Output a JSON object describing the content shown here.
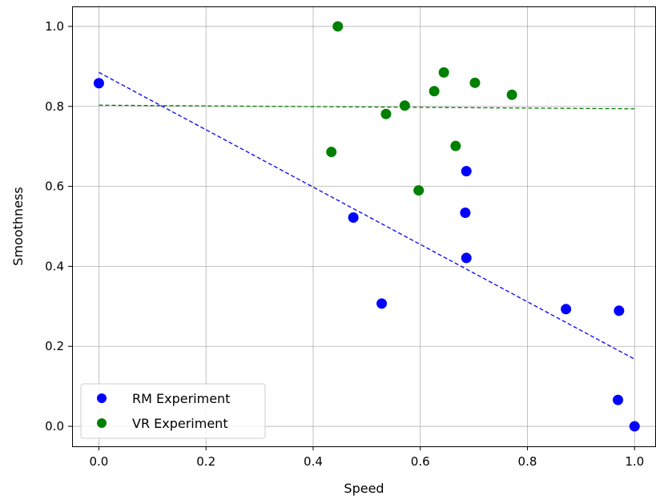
{
  "chart_data": {
    "type": "scatter",
    "xlabel": "Speed",
    "ylabel": "Smoothness",
    "xlim": [
      -0.05,
      1.04
    ],
    "ylim": [
      -0.05,
      1.05
    ],
    "xticks": [
      "0.0",
      "0.2",
      "0.4",
      "0.6",
      "0.8",
      "1.0"
    ],
    "yticks": [
      "0.0",
      "0.2",
      "0.4",
      "0.6",
      "0.8",
      "1.0"
    ],
    "grid": true,
    "legend_position": "lower-left",
    "series": [
      {
        "name": "RM Experiment",
        "color": "#0000ff",
        "points": [
          [
            0.0,
            0.858
          ],
          [
            0.475,
            0.522
          ],
          [
            0.528,
            0.307
          ],
          [
            0.686,
            0.638
          ],
          [
            0.684,
            0.534
          ],
          [
            0.686,
            0.421
          ],
          [
            0.872,
            0.293
          ],
          [
            0.971,
            0.289
          ],
          [
            0.969,
            0.066
          ],
          [
            1.0,
            0.0
          ]
        ],
        "trend": {
          "x": [
            0.0,
            1.0
          ],
          "y": [
            0.885,
            0.168
          ]
        }
      },
      {
        "name": "VR Experiment",
        "color": "#008000",
        "points": [
          [
            0.446,
            1.0
          ],
          [
            0.434,
            0.686
          ],
          [
            0.536,
            0.781
          ],
          [
            0.571,
            0.802
          ],
          [
            0.597,
            0.59
          ],
          [
            0.626,
            0.838
          ],
          [
            0.644,
            0.885
          ],
          [
            0.666,
            0.701
          ],
          [
            0.702,
            0.859
          ],
          [
            0.771,
            0.829
          ]
        ],
        "trend": {
          "x": [
            0.0,
            1.0
          ],
          "y": [
            0.803,
            0.794
          ]
        }
      }
    ]
  }
}
